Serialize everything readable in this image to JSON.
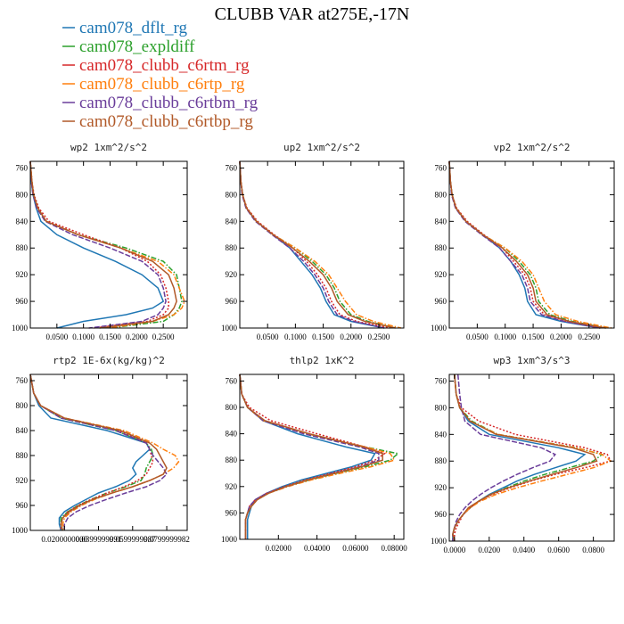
{
  "title": "CLUBB VAR at275E,-17N",
  "legend": [
    {
      "name": "cam078_dflt_rg",
      "color": "#1f77b4",
      "dash": ""
    },
    {
      "name": "cam078_expldiff",
      "color": "#2ca02c",
      "dash": "6,2,1.5,2"
    },
    {
      "name": "cam078_clubb_c6rtm_rg",
      "color": "#d62728",
      "dash": "2,2"
    },
    {
      "name": "cam078_clubb_c6rtp_rg",
      "color": "#ff7f0e",
      "dash": "6,2,1.5,2"
    },
    {
      "name": "cam078_clubb_c6rtbm_rg",
      "color": "#6a3d9a",
      "dash": "6,2"
    },
    {
      "name": "cam078_clubb_c6rtbp_rg",
      "color": "#b15928",
      "dash": ""
    }
  ],
  "chart_data": [
    {
      "type": "line",
      "title": "wp2  1xm^2/s^2",
      "ylim": [
        1000,
        750
      ],
      "yticks": [
        "760",
        "800",
        "840",
        "880",
        "920",
        "960",
        "1000"
      ],
      "ytick_values": [
        760,
        800,
        840,
        880,
        920,
        960,
        1000
      ],
      "xlim": [
        0,
        0.295
      ],
      "xticks": [
        "0.0500",
        "0.1000",
        "0.1500",
        "0.2000",
        "0.2500"
      ],
      "xtick_values": [
        0.05,
        0.1,
        0.15,
        0.2,
        0.25
      ],
      "y": [
        750,
        780,
        800,
        820,
        840,
        860,
        880,
        900,
        920,
        940,
        960,
        970,
        980,
        990,
        1000
      ],
      "series": [
        {
          "values": [
            0,
            0.002,
            0.005,
            0.011,
            0.02,
            0.05,
            0.1,
            0.16,
            0.21,
            0.24,
            0.25,
            0.23,
            0.18,
            0.1,
            0.05
          ]
        },
        {
          "values": [
            0,
            0.003,
            0.006,
            0.014,
            0.03,
            0.09,
            0.18,
            0.25,
            0.275,
            0.28,
            0.285,
            0.28,
            0.27,
            0.25,
            0.15
          ]
        },
        {
          "values": [
            0,
            0.003,
            0.007,
            0.016,
            0.035,
            0.1,
            0.17,
            0.22,
            0.245,
            0.255,
            0.26,
            0.26,
            0.25,
            0.22,
            0.12
          ]
        },
        {
          "values": [
            0,
            0.003,
            0.006,
            0.014,
            0.03,
            0.09,
            0.17,
            0.24,
            0.27,
            0.28,
            0.29,
            0.285,
            0.27,
            0.23,
            0.15
          ]
        },
        {
          "values": [
            0,
            0.002,
            0.005,
            0.012,
            0.028,
            0.08,
            0.15,
            0.21,
            0.24,
            0.25,
            0.255,
            0.25,
            0.24,
            0.21,
            0.11
          ]
        },
        {
          "values": [
            0,
            0.003,
            0.006,
            0.014,
            0.03,
            0.09,
            0.17,
            0.23,
            0.26,
            0.27,
            0.275,
            0.27,
            0.26,
            0.23,
            0.13
          ]
        }
      ]
    },
    {
      "type": "line",
      "title": "up2  1xm^2/s^2",
      "ylim": [
        1000,
        750
      ],
      "yticks": [
        "760",
        "800",
        "840",
        "880",
        "920",
        "960",
        "1000"
      ],
      "ytick_values": [
        760,
        800,
        840,
        880,
        920,
        960,
        1000
      ],
      "xlim": [
        0,
        0.295
      ],
      "xticks": [
        "0.0500",
        "0.1000",
        "0.1500",
        "0.2000",
        "0.2500"
      ],
      "xtick_values": [
        0.05,
        0.1,
        0.15,
        0.2,
        0.25
      ],
      "y": [
        750,
        780,
        800,
        820,
        840,
        860,
        880,
        900,
        920,
        940,
        960,
        980,
        990,
        1000
      ],
      "series": [
        {
          "values": [
            0,
            0.002,
            0.005,
            0.012,
            0.03,
            0.06,
            0.09,
            0.11,
            0.13,
            0.145,
            0.155,
            0.17,
            0.2,
            0.26
          ]
        },
        {
          "values": [
            0,
            0.002,
            0.005,
            0.012,
            0.03,
            0.06,
            0.1,
            0.13,
            0.155,
            0.17,
            0.18,
            0.2,
            0.23,
            0.28
          ]
        },
        {
          "values": [
            0,
            0.002,
            0.005,
            0.013,
            0.032,
            0.062,
            0.095,
            0.12,
            0.14,
            0.155,
            0.165,
            0.18,
            0.21,
            0.27
          ]
        },
        {
          "values": [
            0,
            0.002,
            0.005,
            0.012,
            0.03,
            0.06,
            0.1,
            0.135,
            0.16,
            0.175,
            0.19,
            0.21,
            0.24,
            0.29
          ]
        },
        {
          "values": [
            0,
            0.002,
            0.004,
            0.011,
            0.028,
            0.058,
            0.09,
            0.115,
            0.135,
            0.15,
            0.16,
            0.175,
            0.205,
            0.26
          ]
        },
        {
          "values": [
            0,
            0.002,
            0.005,
            0.012,
            0.03,
            0.06,
            0.095,
            0.125,
            0.15,
            0.165,
            0.175,
            0.195,
            0.225,
            0.28
          ]
        }
      ]
    },
    {
      "type": "line",
      "title": "vp2  1xm^2/s^2",
      "ylim": [
        1000,
        750
      ],
      "yticks": [
        "760",
        "800",
        "840",
        "880",
        "920",
        "960",
        "1000"
      ],
      "ytick_values": [
        760,
        800,
        840,
        880,
        920,
        960,
        1000
      ],
      "xlim": [
        0,
        0.295
      ],
      "xticks": [
        "0.0500",
        "0.1000",
        "0.1500",
        "0.2000",
        "0.2500"
      ],
      "xtick_values": [
        0.05,
        0.1,
        0.15,
        0.2,
        0.25
      ],
      "y": [
        750,
        780,
        800,
        820,
        840,
        860,
        880,
        900,
        920,
        940,
        960,
        980,
        990,
        1000
      ],
      "series": [
        {
          "values": [
            0,
            0.002,
            0.005,
            0.012,
            0.03,
            0.06,
            0.09,
            0.11,
            0.125,
            0.135,
            0.14,
            0.155,
            0.2,
            0.27
          ]
        },
        {
          "values": [
            0,
            0.002,
            0.005,
            0.012,
            0.03,
            0.06,
            0.1,
            0.125,
            0.145,
            0.155,
            0.16,
            0.18,
            0.22,
            0.28
          ]
        },
        {
          "values": [
            0,
            0.002,
            0.005,
            0.013,
            0.032,
            0.062,
            0.095,
            0.115,
            0.135,
            0.145,
            0.15,
            0.17,
            0.21,
            0.27
          ]
        },
        {
          "values": [
            0,
            0.002,
            0.005,
            0.012,
            0.03,
            0.06,
            0.1,
            0.13,
            0.15,
            0.16,
            0.17,
            0.19,
            0.23,
            0.29
          ]
        },
        {
          "values": [
            0,
            0.002,
            0.004,
            0.011,
            0.028,
            0.058,
            0.09,
            0.11,
            0.13,
            0.14,
            0.145,
            0.165,
            0.205,
            0.27
          ]
        },
        {
          "values": [
            0,
            0.002,
            0.005,
            0.012,
            0.03,
            0.06,
            0.095,
            0.12,
            0.14,
            0.15,
            0.155,
            0.175,
            0.215,
            0.28
          ]
        }
      ]
    },
    {
      "type": "line",
      "title": "rtp2  1E-6x(kg/kg)^2",
      "ylim": [
        1000,
        750
      ],
      "yticks": [
        "760",
        "800",
        "840",
        "880",
        "920",
        "960",
        "1000"
      ],
      "ytick_values": [
        760,
        800,
        840,
        880,
        920,
        960,
        1000
      ],
      "xlim": [
        0,
        0.092
      ],
      "xticks": [
        "0.0200000000",
        "0.0399999991",
        "0.0599999987",
        "0.0799999982"
      ],
      "xtick_values": [
        0.02,
        0.04,
        0.06,
        0.08
      ],
      "y": [
        750,
        780,
        800,
        820,
        840,
        860,
        870,
        880,
        890,
        900,
        910,
        920,
        930,
        940,
        950,
        960,
        970,
        980,
        990,
        1000
      ],
      "series": [
        {
          "values": [
            0,
            0.002,
            0.005,
            0.012,
            0.045,
            0.068,
            0.07,
            0.066,
            0.062,
            0.06,
            0.062,
            0.058,
            0.05,
            0.04,
            0.033,
            0.026,
            0.02,
            0.017,
            0.017,
            0.018
          ]
        },
        {
          "values": [
            0,
            0.002,
            0.006,
            0.018,
            0.05,
            0.068,
            0.071,
            0.072,
            0.07,
            0.068,
            0.067,
            0.065,
            0.056,
            0.045,
            0.036,
            0.028,
            0.022,
            0.018,
            0.018,
            0.019
          ]
        },
        {
          "values": [
            0,
            0.002,
            0.006,
            0.02,
            0.052,
            0.068,
            0.07,
            0.071,
            0.072,
            0.07,
            0.068,
            0.063,
            0.055,
            0.045,
            0.036,
            0.028,
            0.022,
            0.019,
            0.018,
            0.018
          ]
        },
        {
          "values": [
            0,
            0.002,
            0.006,
            0.02,
            0.055,
            0.072,
            0.078,
            0.085,
            0.087,
            0.084,
            0.078,
            0.07,
            0.06,
            0.048,
            0.038,
            0.03,
            0.024,
            0.02,
            0.019,
            0.02
          ]
        },
        {
          "values": [
            0,
            0.002,
            0.006,
            0.018,
            0.05,
            0.068,
            0.07,
            0.072,
            0.075,
            0.078,
            0.08,
            0.076,
            0.068,
            0.056,
            0.045,
            0.035,
            0.027,
            0.022,
            0.02,
            0.02
          ]
        },
        {
          "values": [
            0,
            0.002,
            0.006,
            0.02,
            0.053,
            0.07,
            0.074,
            0.076,
            0.078,
            0.08,
            0.078,
            0.07,
            0.06,
            0.048,
            0.037,
            0.029,
            0.023,
            0.019,
            0.018,
            0.019
          ]
        }
      ]
    },
    {
      "type": "line",
      "title": "thlp2  1xK^2",
      "ylim": [
        1000,
        750
      ],
      "yticks": [
        "760",
        "800",
        "840",
        "880",
        "920",
        "960",
        "1000"
      ],
      "ytick_values": [
        760,
        800,
        840,
        880,
        920,
        960,
        1000
      ],
      "xlim": [
        0,
        0.085
      ],
      "xticks": [
        "0.02000",
        "0.04000",
        "0.06000",
        "0.08000"
      ],
      "xtick_values": [
        0.02,
        0.04,
        0.06,
        0.08
      ],
      "y": [
        750,
        780,
        800,
        820,
        840,
        860,
        870,
        880,
        890,
        900,
        910,
        920,
        930,
        940,
        950,
        960,
        970,
        980,
        990,
        1000
      ],
      "series": [
        {
          "values": [
            0,
            0.001,
            0.004,
            0.012,
            0.03,
            0.055,
            0.07,
            0.068,
            0.058,
            0.045,
            0.032,
            0.022,
            0.014,
            0.008,
            0.006,
            0.005,
            0.004,
            0.004,
            0.004,
            0.004
          ]
        },
        {
          "values": [
            0,
            0.001,
            0.004,
            0.012,
            0.035,
            0.065,
            0.082,
            0.078,
            0.065,
            0.05,
            0.036,
            0.024,
            0.015,
            0.009,
            0.006,
            0.004,
            0.003,
            0.003,
            0.003,
            0.003
          ]
        },
        {
          "values": [
            0,
            0.001,
            0.005,
            0.016,
            0.04,
            0.065,
            0.075,
            0.07,
            0.06,
            0.047,
            0.034,
            0.023,
            0.014,
            0.008,
            0.005,
            0.004,
            0.003,
            0.003,
            0.003,
            0.003
          ]
        },
        {
          "values": [
            0,
            0.001,
            0.004,
            0.012,
            0.035,
            0.065,
            0.078,
            0.08,
            0.068,
            0.052,
            0.037,
            0.025,
            0.015,
            0.009,
            0.006,
            0.004,
            0.003,
            0.003,
            0.003,
            0.003
          ]
        },
        {
          "values": [
            0,
            0.001,
            0.004,
            0.012,
            0.033,
            0.062,
            0.072,
            0.072,
            0.062,
            0.048,
            0.035,
            0.024,
            0.014,
            0.008,
            0.005,
            0.004,
            0.003,
            0.003,
            0.003,
            0.003
          ]
        },
        {
          "values": [
            0,
            0.001,
            0.004,
            0.013,
            0.036,
            0.064,
            0.074,
            0.074,
            0.063,
            0.049,
            0.035,
            0.024,
            0.015,
            0.009,
            0.006,
            0.004,
            0.003,
            0.003,
            0.003,
            0.003
          ]
        }
      ]
    },
    {
      "type": "line",
      "title": "wp3  1xm^3/s^3",
      "ylim": [
        1000,
        750
      ],
      "yticks": [
        "760",
        "800",
        "840",
        "880",
        "920",
        "960",
        "1000"
      ],
      "ytick_values": [
        760,
        800,
        840,
        880,
        920,
        960,
        1000
      ],
      "xlim": [
        -0.003,
        0.092
      ],
      "xticks": [
        "0.0000",
        "0.0200",
        "0.0400",
        "0.0600",
        "0.0800"
      ],
      "xtick_values": [
        0,
        0.02,
        0.04,
        0.06,
        0.08
      ],
      "y": [
        750,
        780,
        800,
        820,
        840,
        860,
        870,
        880,
        890,
        900,
        910,
        920,
        930,
        940,
        950,
        960,
        970,
        980,
        990,
        1000
      ],
      "series": [
        {
          "values": [
            0,
            0.001,
            0.003,
            0.008,
            0.02,
            0.06,
            0.075,
            0.07,
            0.058,
            0.046,
            0.036,
            0.028,
            0.02,
            0.014,
            0.009,
            0.005,
            0.002,
            0.0,
            -0.001,
            -0.001
          ]
        },
        {
          "values": [
            0,
            0.001,
            0.003,
            0.01,
            0.025,
            0.07,
            0.085,
            0.08,
            0.066,
            0.052,
            0.04,
            0.03,
            0.021,
            0.014,
            0.009,
            0.005,
            0.002,
            0.0,
            -0.001,
            0.0
          ]
        },
        {
          "values": [
            0,
            0.001,
            0.004,
            0.014,
            0.035,
            0.075,
            0.088,
            0.09,
            0.075,
            0.058,
            0.044,
            0.032,
            0.022,
            0.014,
            0.009,
            0.005,
            0.003,
            0.001,
            0.0,
            0.0
          ]
        },
        {
          "values": [
            0,
            0.001,
            0.003,
            0.009,
            0.025,
            0.07,
            0.085,
            0.09,
            0.08,
            0.065,
            0.05,
            0.036,
            0.024,
            0.015,
            0.009,
            0.005,
            0.002,
            0.0,
            -0.001,
            0.0
          ]
        },
        {
          "values": [
            0.002,
            0.003,
            0.004,
            0.006,
            0.015,
            0.05,
            0.058,
            0.055,
            0.045,
            0.036,
            0.028,
            0.021,
            0.015,
            0.01,
            0.006,
            0.003,
            0.001,
            0.0,
            -0.001,
            -0.001
          ]
        },
        {
          "values": [
            0,
            0.001,
            0.003,
            0.009,
            0.024,
            0.068,
            0.08,
            0.082,
            0.07,
            0.056,
            0.043,
            0.031,
            0.021,
            0.014,
            0.008,
            0.005,
            0.002,
            0.0,
            -0.001,
            0.0
          ]
        }
      ]
    }
  ]
}
